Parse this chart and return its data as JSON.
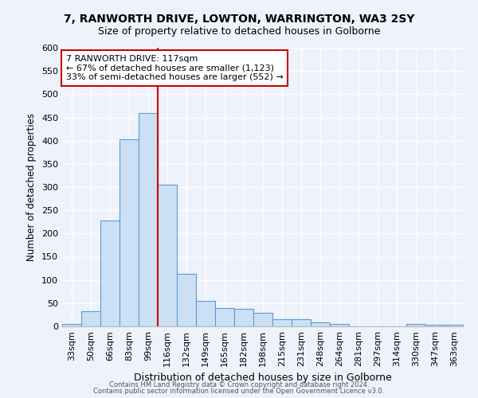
{
  "title1": "7, RANWORTH DRIVE, LOWTON, WARRINGTON, WA3 2SY",
  "title2": "Size of property relative to detached houses in Golborne",
  "xlabel": "Distribution of detached houses by size in Golborne",
  "ylabel": "Number of detached properties",
  "categories": [
    "33sqm",
    "50sqm",
    "66sqm",
    "83sqm",
    "99sqm",
    "116sqm",
    "132sqm",
    "149sqm",
    "165sqm",
    "182sqm",
    "198sqm",
    "215sqm",
    "231sqm",
    "248sqm",
    "264sqm",
    "281sqm",
    "297sqm",
    "314sqm",
    "330sqm",
    "347sqm",
    "363sqm"
  ],
  "values": [
    5,
    32,
    228,
    403,
    460,
    305,
    113,
    55,
    40,
    37,
    30,
    15,
    15,
    8,
    5,
    0,
    0,
    0,
    5,
    3,
    4
  ],
  "bar_color": "#cce0f5",
  "bar_edge_color": "#5b9bd5",
  "vline_x": 4.5,
  "vline_color": "#cc0000",
  "annotation_text": "7 RANWORTH DRIVE: 117sqm\n← 67% of detached houses are smaller (1,123)\n33% of semi-detached houses are larger (552) →",
  "annotation_box_color": "white",
  "annotation_box_edge": "#cc0000",
  "ylim": [
    0,
    600
  ],
  "yticks": [
    0,
    50,
    100,
    150,
    200,
    250,
    300,
    350,
    400,
    450,
    500,
    550,
    600
  ],
  "footer1": "Contains HM Land Registry data © Crown copyright and database right 2024.",
  "footer2": "Contains public sector information licensed under the Open Government Licence v3.0.",
  "bg_color": "#eef2fa",
  "plot_bg_color": "#eef2fa",
  "title1_fontsize": 10,
  "title2_fontsize": 9,
  "xlabel_fontsize": 9,
  "ylabel_fontsize": 8.5,
  "annotation_fontsize": 8,
  "tick_fontsize": 8
}
